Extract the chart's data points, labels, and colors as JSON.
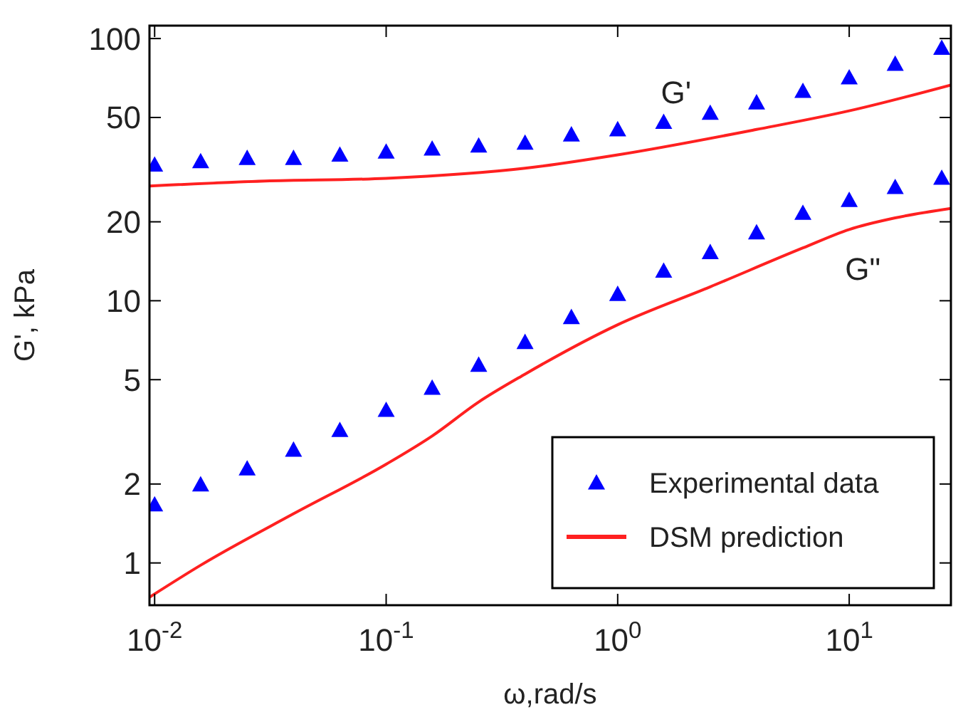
{
  "chart_data": {
    "type": "scatter",
    "xlabel": "ω,rad/s",
    "ylabel": "G', kPa",
    "log": "xy",
    "grid": false,
    "legend": "bottom right",
    "marker": "triangle",
    "xlim": [
      0.0095,
      27.5
    ],
    "ylim": [
      0.69,
      112
    ],
    "xticks": [
      {
        "value": 0.01,
        "label": "10$^{-2}$"
      },
      {
        "value": 0.1,
        "label": "10$^{-1}$"
      },
      {
        "value": 1,
        "label": "10$^{0}$"
      },
      {
        "value": 10,
        "label": "10$^{1}$"
      }
    ],
    "yticks": [
      1,
      2,
      5,
      10,
      20,
      50,
      100
    ],
    "annotations": [
      "G'",
      "G\""
    ],
    "series": [
      {
        "name": "Experimental data",
        "color": "#0000ff",
        "x": [
          0.01,
          0.0158,
          0.0251,
          0.0398,
          0.0631,
          0.1,
          0.158,
          0.251,
          0.398,
          0.631,
          1,
          1.58,
          2.51,
          3.98,
          6.31,
          10,
          15.8,
          25.1
        ],
        "values": [
          33,
          34,
          35,
          35,
          36,
          37,
          38,
          39,
          40,
          43,
          45,
          48,
          52,
          57,
          63,
          71,
          80,
          92
        ]
      },
      {
        "color": "#0000ff",
        "x": [
          0.01,
          0.0158,
          0.0251,
          0.0398,
          0.0631,
          0.1,
          0.158,
          0.251,
          0.398,
          0.631,
          1,
          1.58,
          2.51,
          3.98,
          6.31,
          10,
          15.8,
          25.1
        ],
        "values": [
          1.67,
          1.99,
          2.29,
          2.7,
          3.21,
          3.83,
          4.65,
          5.69,
          6.95,
          8.65,
          10.6,
          13,
          15.3,
          18.2,
          21.6,
          24.2,
          27.1,
          29.4
        ]
      },
      {
        "name": "DSM prediction",
        "type": "line",
        "marker": "none",
        "color": "#ff2020",
        "x": [
          0.0095,
          0.03,
          0.1,
          0.398,
          1,
          3.98,
          10,
          27.5
        ],
        "values": [
          27.4,
          28.6,
          29.3,
          32,
          36,
          45,
          53,
          66.5
        ]
      },
      {
        "type": "line",
        "marker": "none",
        "color": "#ff2020",
        "x": [
          0.0095,
          0.0158,
          0.0398,
          0.1,
          0.158,
          0.251,
          0.398,
          1,
          2.51,
          6.31,
          10,
          15.8,
          27.5
        ],
        "values": [
          0.74,
          0.98,
          1.54,
          2.38,
          3.05,
          4.11,
          5.25,
          8.1,
          11.3,
          15.9,
          18.7,
          20.7,
          22.5
        ]
      }
    ]
  }
}
